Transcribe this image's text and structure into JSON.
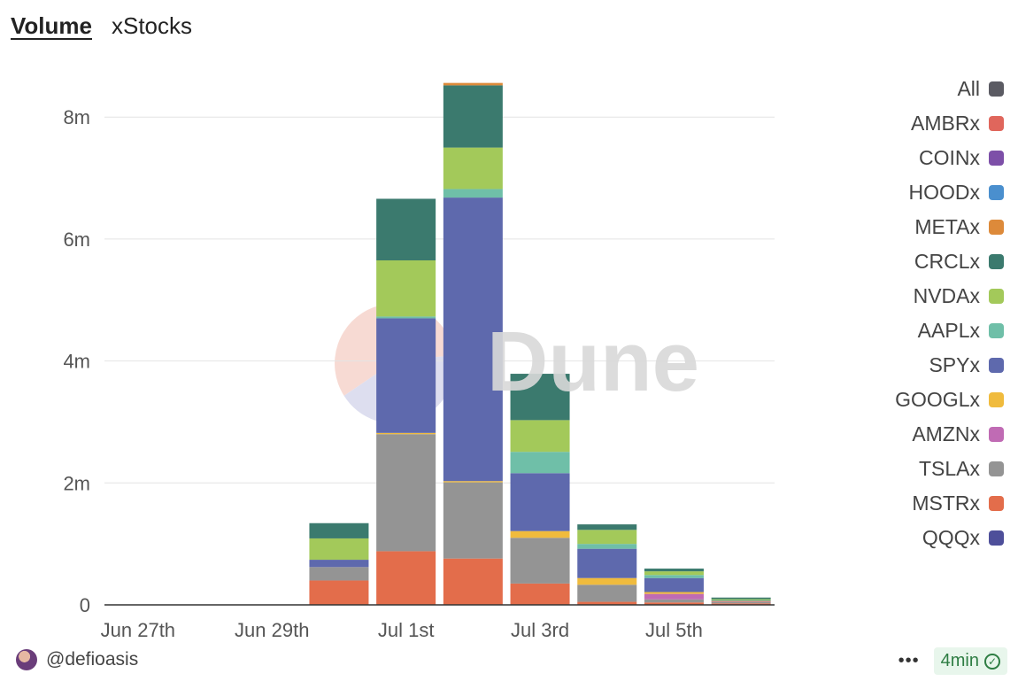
{
  "tabs": [
    {
      "label": "Volume",
      "active": true
    },
    {
      "label": "xStocks",
      "active": false
    }
  ],
  "watermark": "Dune",
  "footer": {
    "author": "@defioasis",
    "refresh": "4min",
    "more": "•••"
  },
  "chart_data": {
    "type": "bar",
    "stacked": true,
    "title": "",
    "xlabel": "",
    "ylabel": "",
    "ylim": [
      0,
      8700000
    ],
    "y_ticks": [
      0,
      2000000,
      4000000,
      6000000,
      8000000
    ],
    "y_tick_labels": [
      "0",
      "2m",
      "4m",
      "6m",
      "8m"
    ],
    "x_tick_labels": [
      "Jun 27th",
      "Jun 29th",
      "Jul 1st",
      "Jul 3rd",
      "Jul 5th"
    ],
    "categories": [
      "Jun 27th",
      "Jun 28th",
      "Jun 29th",
      "Jun 30th",
      "Jul 1st",
      "Jul 2nd",
      "Jul 3rd",
      "Jul 4th",
      "Jul 5th",
      "Jul 6th"
    ],
    "grid": true,
    "legend_position": "right",
    "legend": [
      "All",
      "AMBRx",
      "COINx",
      "HOODx",
      "METAx",
      "CRCLx",
      "NVDAx",
      "AAPLx",
      "SPYx",
      "GOOGLx",
      "AMZNx",
      "TSLAx",
      "MSTRx",
      "QQQx"
    ],
    "legend_colors": [
      "#5b5b63",
      "#e0665c",
      "#7d4fa8",
      "#4a8fce",
      "#dd8a3a",
      "#3b7a6e",
      "#a3c95a",
      "#6fbfa8",
      "#5e69ad",
      "#f0bb3d",
      "#c06bb4",
      "#949494",
      "#e36d4b",
      "#4e4f9a"
    ],
    "series": [
      {
        "name": "MSTRx",
        "color": "#e36d4b",
        "values": [
          0,
          0,
          0,
          400000,
          880000,
          760000,
          350000,
          50000,
          40000,
          25000
        ]
      },
      {
        "name": "TSLAx",
        "color": "#949494",
        "values": [
          0,
          0,
          0,
          220000,
          1920000,
          1250000,
          750000,
          280000,
          50000,
          20000
        ]
      },
      {
        "name": "AMZNx",
        "color": "#c06bb4",
        "values": [
          0,
          0,
          0,
          0,
          0,
          0,
          0,
          0,
          90000,
          15000
        ]
      },
      {
        "name": "GOOGLx",
        "color": "#f0bb3d",
        "values": [
          0,
          0,
          0,
          0,
          20000,
          20000,
          110000,
          110000,
          30000,
          5000
        ]
      },
      {
        "name": "SPYx",
        "color": "#5e69ad",
        "values": [
          0,
          0,
          0,
          120000,
          1880000,
          4650000,
          950000,
          480000,
          230000,
          10000
        ]
      },
      {
        "name": "AAPLx",
        "color": "#6fbfa8",
        "values": [
          0,
          0,
          0,
          0,
          30000,
          140000,
          350000,
          80000,
          50000,
          5000
        ]
      },
      {
        "name": "NVDAx",
        "color": "#a3c95a",
        "values": [
          0,
          0,
          0,
          350000,
          920000,
          680000,
          520000,
          230000,
          60000,
          15000
        ]
      },
      {
        "name": "CRCLx",
        "color": "#3b7a6e",
        "values": [
          0,
          0,
          0,
          250000,
          1010000,
          1020000,
          760000,
          90000,
          45000,
          25000
        ]
      },
      {
        "name": "METAx",
        "color": "#dd8a3a",
        "values": [
          0,
          0,
          0,
          0,
          0,
          40000,
          0,
          0,
          0,
          0
        ]
      }
    ]
  }
}
